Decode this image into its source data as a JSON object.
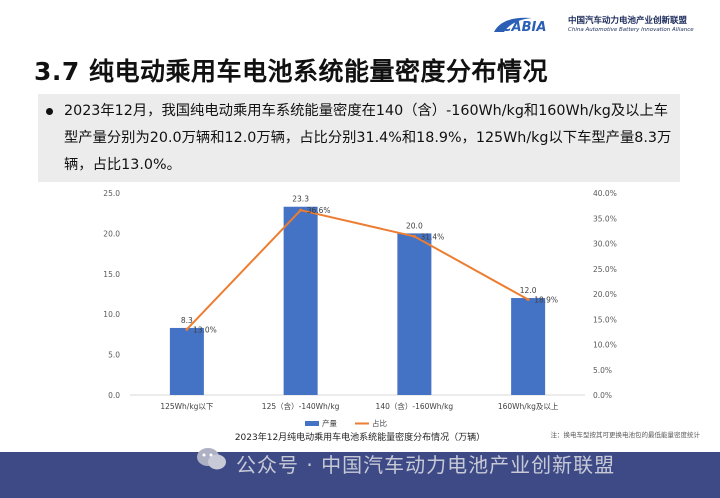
{
  "header": {
    "logo_text": "CABIA",
    "org_name_cn": "中国汽车动力电池产业创新联盟",
    "org_name_en": "China Automotive Battery Innovation Alliance",
    "accent_color": "#2a5fb5"
  },
  "page_title": "3.7 纯电动乘用车电池系统能量密度分布情况",
  "summary": {
    "text": "2023年12月，我国纯电动乘用车系统能量密度在140（含）-160Wh/kg和160Wh/kg及以上车型产量分别为20.0万辆和12.0万辆，占比分别31.4%和18.9%，125Wh/kg以下车型产量8.3万辆，占比13.0%。"
  },
  "chart_data": {
    "type": "bar",
    "caption": "2023年12月纯电动乘用车电池系统能量密度分布情况（万辆）",
    "note": "注：换电车型按其可更换电池包的最低能量密度统计",
    "categories": [
      "125Wh/kg以下",
      "125（含）-140Wh/kg",
      "140（含）-160Wh/kg",
      "160Wh/kg及以上"
    ],
    "series": [
      {
        "name": "产量",
        "type": "bar",
        "axis": "left",
        "values": [
          8.3,
          23.3,
          20.0,
          12.0
        ],
        "value_labels": [
          "8.3",
          "23.3",
          "20.0",
          "12.0"
        ],
        "color": "#4472c4"
      },
      {
        "name": "占比",
        "type": "line",
        "axis": "right",
        "values": [
          13.0,
          36.6,
          31.4,
          18.9
        ],
        "value_labels": [
          "13.0%",
          "36.6%",
          "31.4%",
          "18.9%"
        ],
        "color": "#ed7d31"
      }
    ],
    "y_left": {
      "min": 0,
      "max": 25,
      "ticks": [
        "0.0",
        "5.0",
        "10.0",
        "15.0",
        "20.0",
        "25.0"
      ]
    },
    "y_right": {
      "min": 0,
      "max": 40,
      "ticks": [
        "0.0%",
        "5.0%",
        "10.0%",
        "15.0%",
        "20.0%",
        "25.0%",
        "30.0%",
        "35.0%",
        "40.0%"
      ]
    },
    "legend_position": "bottom",
    "grid": false
  },
  "footer": {
    "watermark": "公众号 · 中国汽车动力电池产业创新联盟",
    "icon": "wechat-icon",
    "band_color": "#3d4a86"
  }
}
